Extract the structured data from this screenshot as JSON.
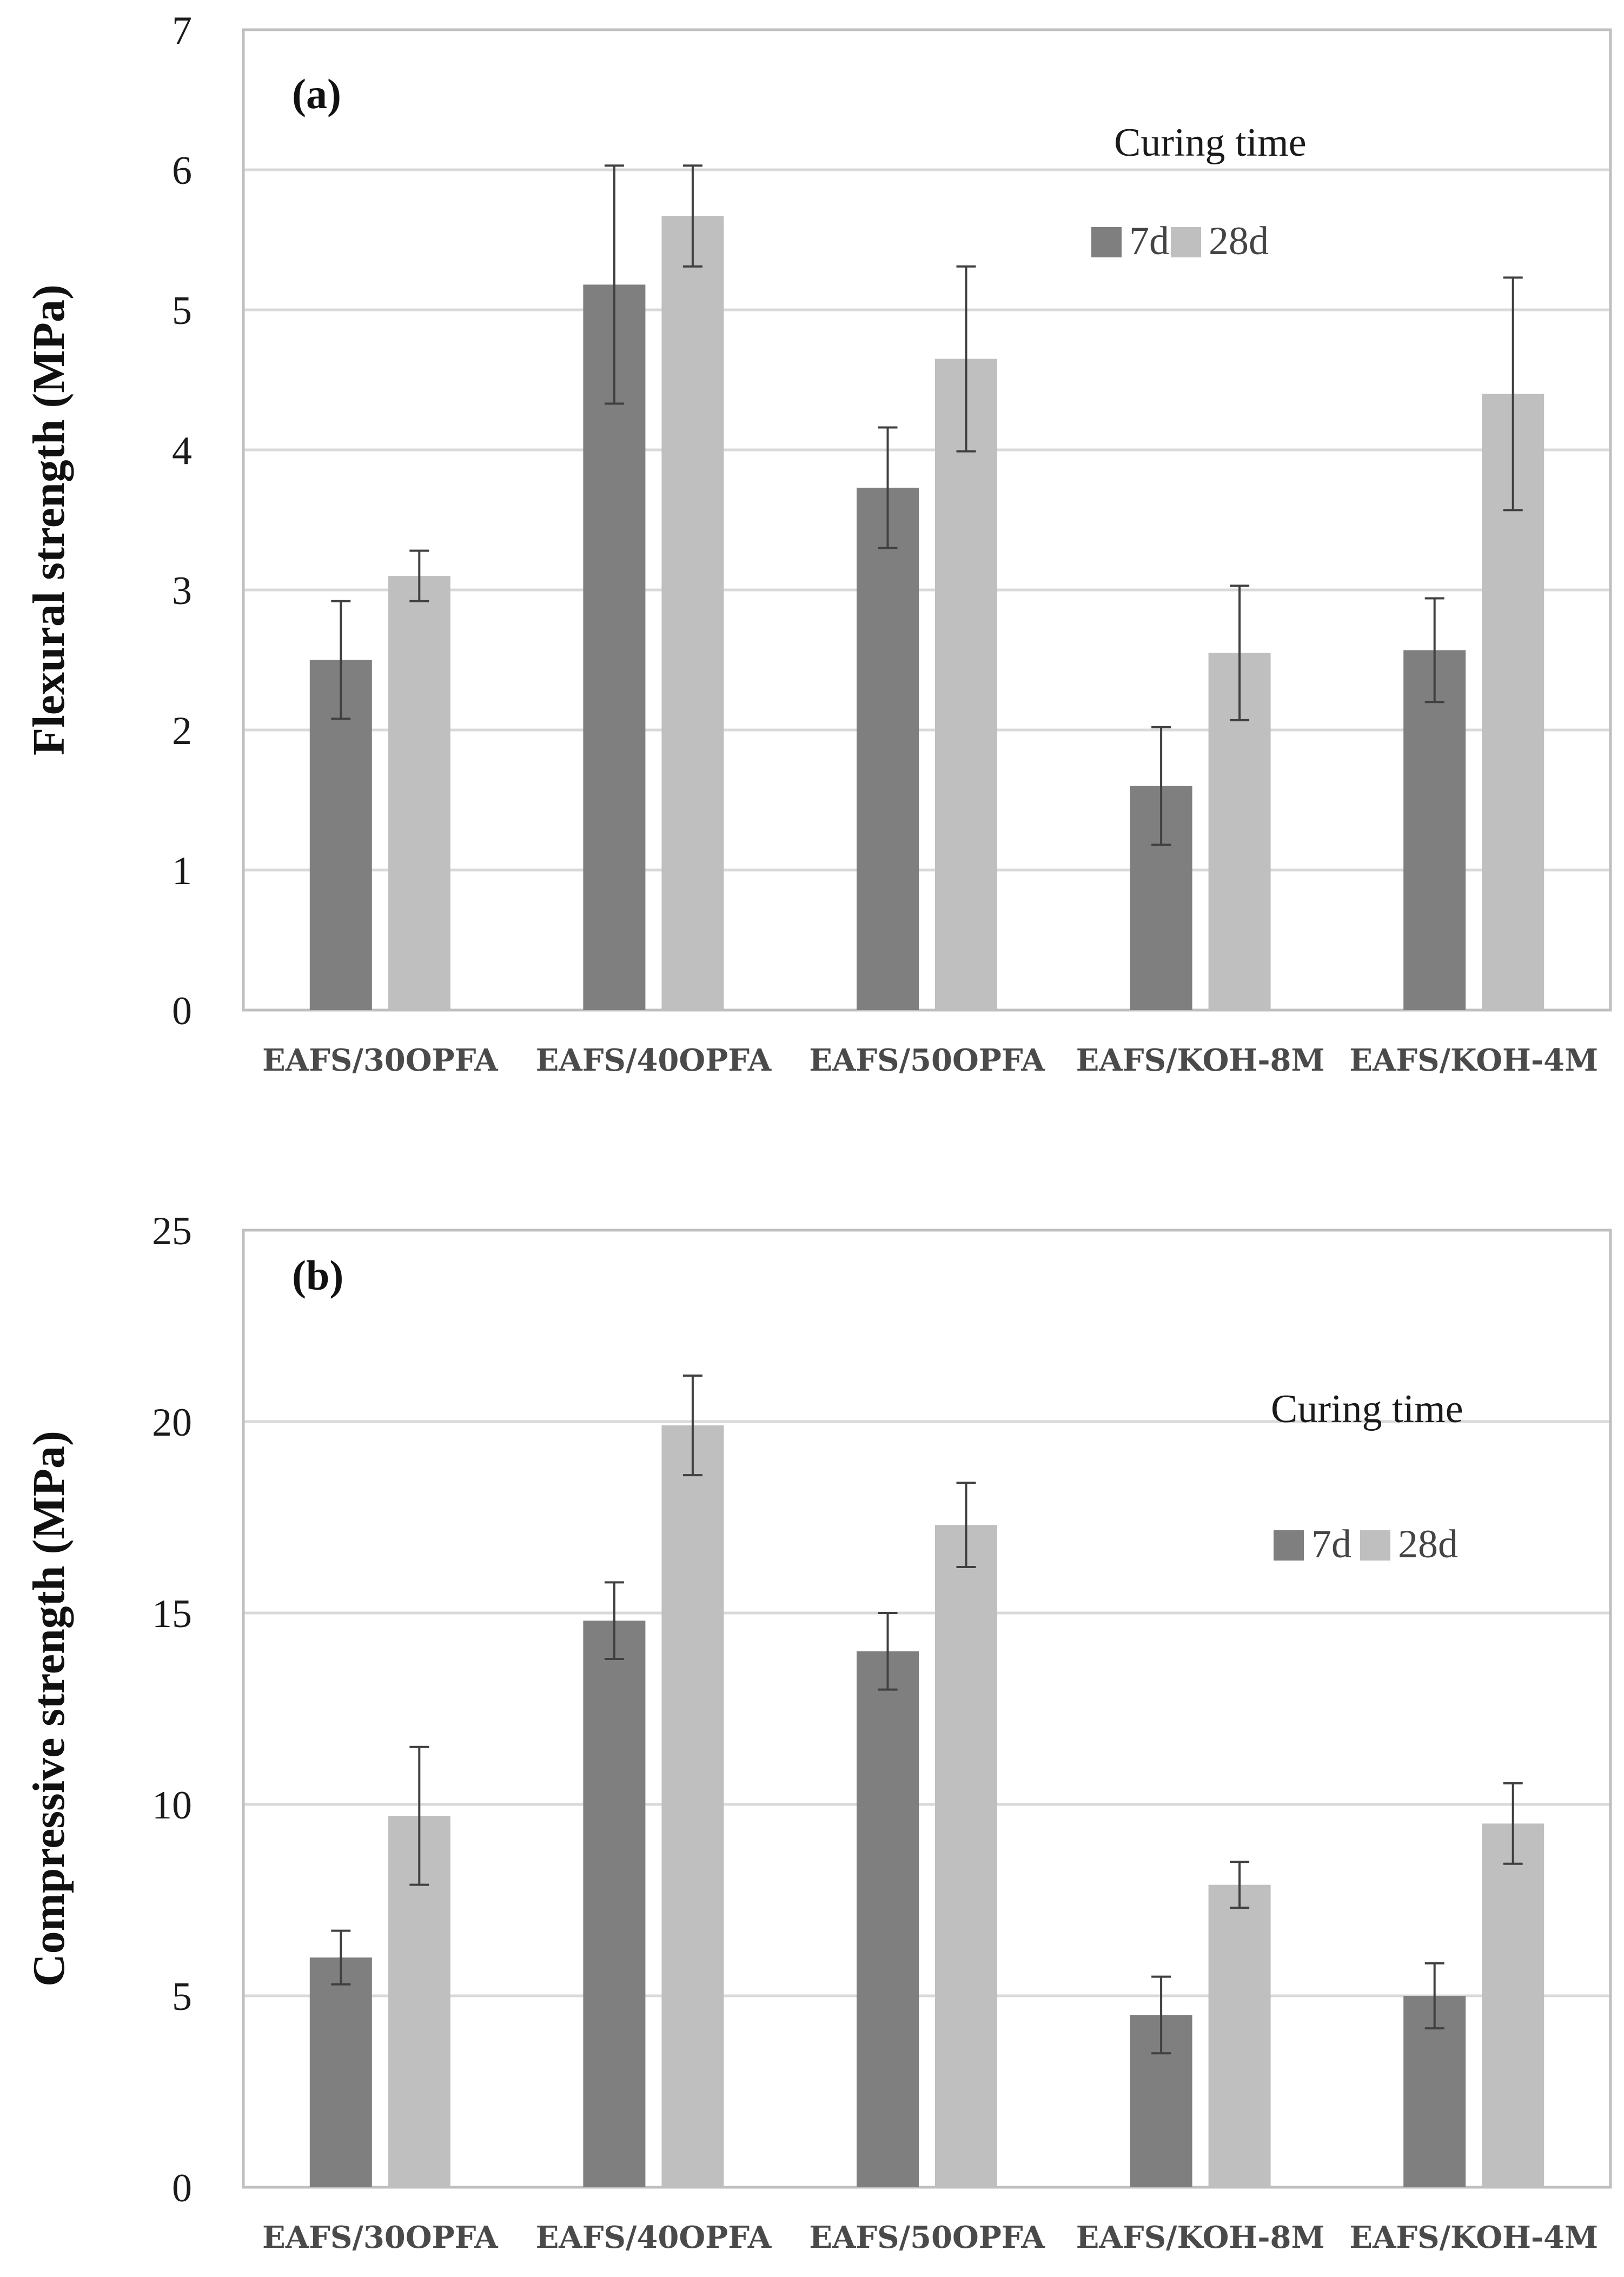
{
  "colors": {
    "series_7d": "#7f7f7f",
    "series_28d": "#bfbfbf",
    "grid": "#d9d9d9",
    "frame": "#bfbfbf",
    "error_bar": "#404040"
  },
  "chart_data": [
    {
      "type": "bar",
      "panel_label": "(a)",
      "ylabel": "Flexural strength (MPa)",
      "xlabel": "",
      "ylim": [
        0,
        7
      ],
      "yticks": [
        0,
        1,
        2,
        3,
        4,
        5,
        6,
        7
      ],
      "grid": true,
      "legend_title": "Curing time",
      "legend_position": "top-right",
      "categories": [
        "EAFS/30OPFA",
        "EAFS/40OPFA",
        "EAFS/50OPFA",
        "EAFS/KOH-8M",
        "EAFS/KOH-4M"
      ],
      "series": [
        {
          "name": "7d",
          "values": [
            2.5,
            5.18,
            3.73,
            1.6,
            2.57
          ],
          "errors": [
            0.42,
            0.85,
            0.43,
            0.42,
            0.37
          ]
        },
        {
          "name": "28d",
          "values": [
            3.1,
            5.67,
            4.65,
            2.55,
            4.4
          ],
          "errors": [
            0.18,
            0.36,
            0.66,
            0.48,
            0.83
          ]
        }
      ]
    },
    {
      "type": "bar",
      "panel_label": "(b)",
      "ylabel": "Compressive strength (MPa)",
      "xlabel": "",
      "ylim": [
        0,
        25
      ],
      "yticks": [
        0,
        5,
        10,
        15,
        20,
        25
      ],
      "grid": true,
      "legend_title": "Curing time",
      "legend_position": "top-right",
      "categories": [
        "EAFS/30OPFA",
        "EAFS/40OPFA",
        "EAFS/50OPFA",
        "EAFS/KOH-8M",
        "EAFS/KOH-4M"
      ],
      "series": [
        {
          "name": "7d",
          "values": [
            6.0,
            14.8,
            14.0,
            4.5,
            5.0
          ],
          "errors": [
            0.7,
            1.0,
            1.0,
            1.0,
            0.85
          ]
        },
        {
          "name": "28d",
          "values": [
            9.7,
            19.9,
            17.3,
            7.9,
            9.5
          ],
          "errors": [
            1.8,
            1.3,
            1.1,
            0.6,
            1.05
          ]
        }
      ]
    }
  ]
}
